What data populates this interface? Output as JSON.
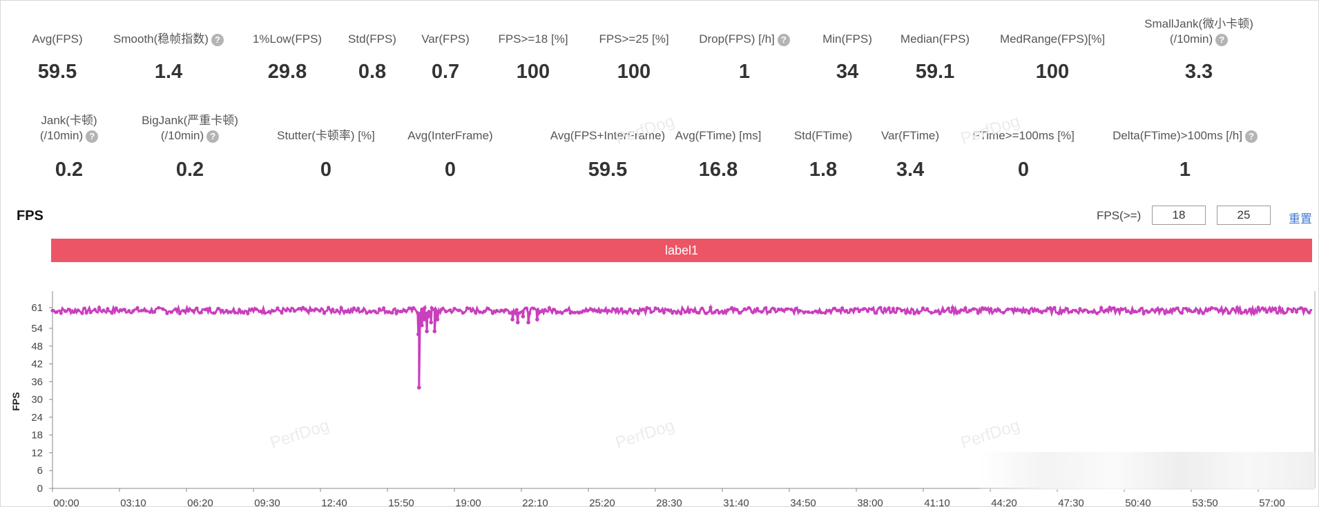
{
  "stats_row1": [
    {
      "label": "Avg(FPS)",
      "value": "59.5",
      "help": false
    },
    {
      "label": "Smooth(稳帧指数)",
      "value": "1.4",
      "help": true
    },
    {
      "label": "1%Low(FPS)",
      "value": "29.8",
      "help": false
    },
    {
      "label": "Std(FPS)",
      "value": "0.8",
      "help": false
    },
    {
      "label": "Var(FPS)",
      "value": "0.7",
      "help": false
    },
    {
      "label": "FPS>=18 [%]",
      "value": "100",
      "help": false
    },
    {
      "label": "FPS>=25 [%]",
      "value": "100",
      "help": false
    },
    {
      "label": "Drop(FPS) [/h]",
      "value": "1",
      "help": true
    },
    {
      "label": "Min(FPS)",
      "value": "34",
      "help": false
    },
    {
      "label": "Median(FPS)",
      "value": "59.1",
      "help": false
    },
    {
      "label": "MedRange(FPS)[%]",
      "value": "100",
      "help": false
    },
    {
      "label": "SmallJank(微小卡顿)",
      "label2": "(/10min)",
      "value": "3.3",
      "help": true
    }
  ],
  "stats_row2": [
    {
      "label": "Jank(卡顿)",
      "label2": "(/10min)",
      "value": "0.2",
      "help": true
    },
    {
      "label": "BigJank(严重卡顿)",
      "label2": "(/10min)",
      "value": "0.2",
      "help": true
    },
    {
      "label": "Stutter(卡顿率) [%]",
      "value": "0",
      "help": false
    },
    {
      "label": "Avg(InterFrame)",
      "value": "0",
      "help": false
    },
    {
      "label": "Avg(FPS+InterFrame)",
      "value": "59.5",
      "help": false
    },
    {
      "label": "Avg(FTime) [ms]",
      "value": "16.8",
      "help": false
    },
    {
      "label": "Std(FTime)",
      "value": "1.8",
      "help": false
    },
    {
      "label": "Var(FTime)",
      "value": "3.4",
      "help": false
    },
    {
      "label": "FTime>=100ms [%]",
      "value": "0",
      "help": false
    },
    {
      "label": "Delta(FTime)>100ms [/h]",
      "value": "1",
      "help": true
    }
  ],
  "help_glyph": "?",
  "fps_section": {
    "title": "FPS",
    "threshold_label": "FPS(>=)",
    "threshold_low": "18",
    "threshold_high": "25",
    "reset_label": "重置",
    "label_bar": "label1",
    "label_bar_color": "#ec5566"
  },
  "watermark": "PerfDog",
  "chart_data": {
    "type": "line",
    "title": "",
    "xlabel": "",
    "ylabel": "FPS",
    "series_color": "#c93fbd",
    "y_ticks": [
      0,
      6,
      12,
      18,
      24,
      30,
      36,
      42,
      48,
      54,
      61
    ],
    "ylim": [
      0,
      64
    ],
    "x_ticks": [
      "00:00",
      "03:10",
      "06:20",
      "09:30",
      "12:40",
      "15:50",
      "19:00",
      "22:10",
      "25:20",
      "28:30",
      "31:40",
      "34:50",
      "38:00",
      "41:10",
      "44:20",
      "47:30",
      "50:40",
      "53:50",
      "57:00"
    ],
    "x_range_seconds": [
      0,
      3560
    ],
    "baseline_fps": [
      59,
      61
    ],
    "dips": [
      {
        "t": 1034,
        "fps": 52
      },
      {
        "t": 1036,
        "fps": 34
      },
      {
        "t": 1039,
        "fps": 58
      },
      {
        "t": 1044,
        "fps": 55
      },
      {
        "t": 1052,
        "fps": 57
      },
      {
        "t": 1058,
        "fps": 53
      },
      {
        "t": 1062,
        "fps": 58
      },
      {
        "t": 1070,
        "fps": 56
      },
      {
        "t": 1080,
        "fps": 53
      },
      {
        "t": 1088,
        "fps": 57
      },
      {
        "t": 1300,
        "fps": 57
      },
      {
        "t": 1315,
        "fps": 56
      },
      {
        "t": 1330,
        "fps": 58
      },
      {
        "t": 1345,
        "fps": 56
      },
      {
        "t": 1370,
        "fps": 57
      }
    ],
    "grid": false,
    "legend": "none"
  }
}
